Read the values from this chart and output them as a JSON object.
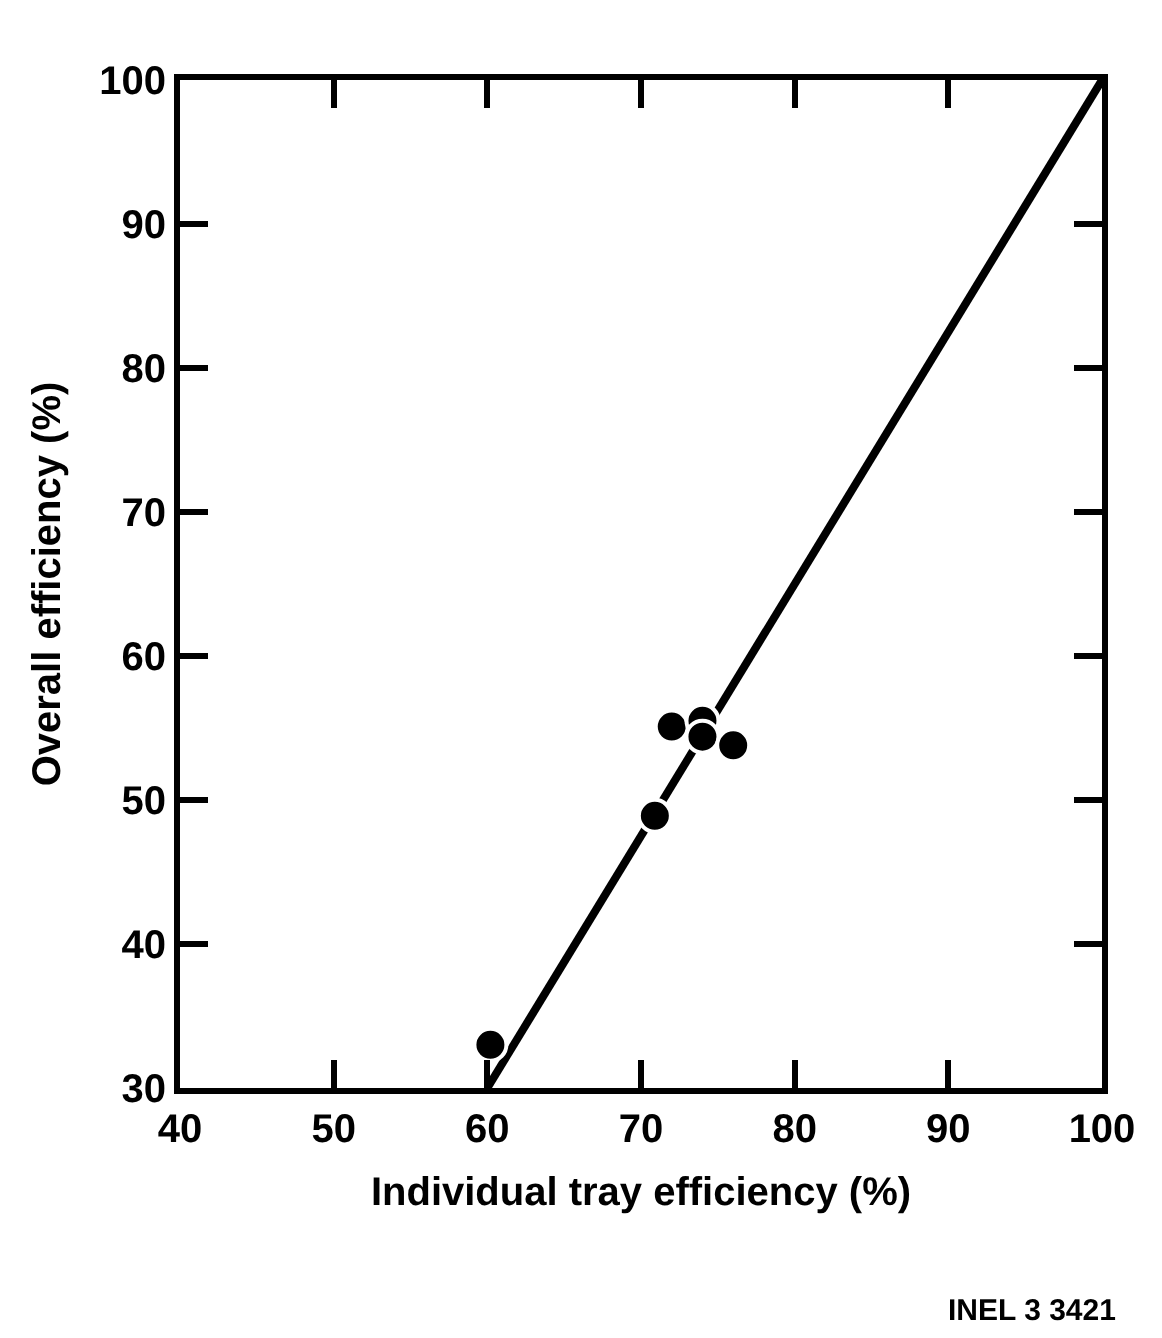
{
  "chart_data": {
    "type": "scatter",
    "xlabel": "Individual tray efficiency (%)",
    "ylabel": "Overall efficiency (%)",
    "xlim": [
      40,
      100
    ],
    "ylim": [
      30,
      100
    ],
    "xticks": [
      40,
      50,
      60,
      70,
      80,
      90,
      100
    ],
    "yticks": [
      30,
      40,
      50,
      60,
      70,
      80,
      90,
      100
    ],
    "grid": false,
    "marker": "circle",
    "series": [
      {
        "color": "#000000",
        "x": [
          60.2,
          70.9,
          72,
          74,
          74,
          76
        ],
        "values": [
          33,
          48.9,
          55.1,
          55.5,
          54.4,
          53.8
        ]
      },
      {
        "type": "line",
        "color": "#000000",
        "x": [
          60,
          100
        ],
        "values": [
          30,
          100
        ],
        "line_style": "solid",
        "marker": "none"
      }
    ],
    "annotations": [
      "INEL 3 3421"
    ]
  }
}
